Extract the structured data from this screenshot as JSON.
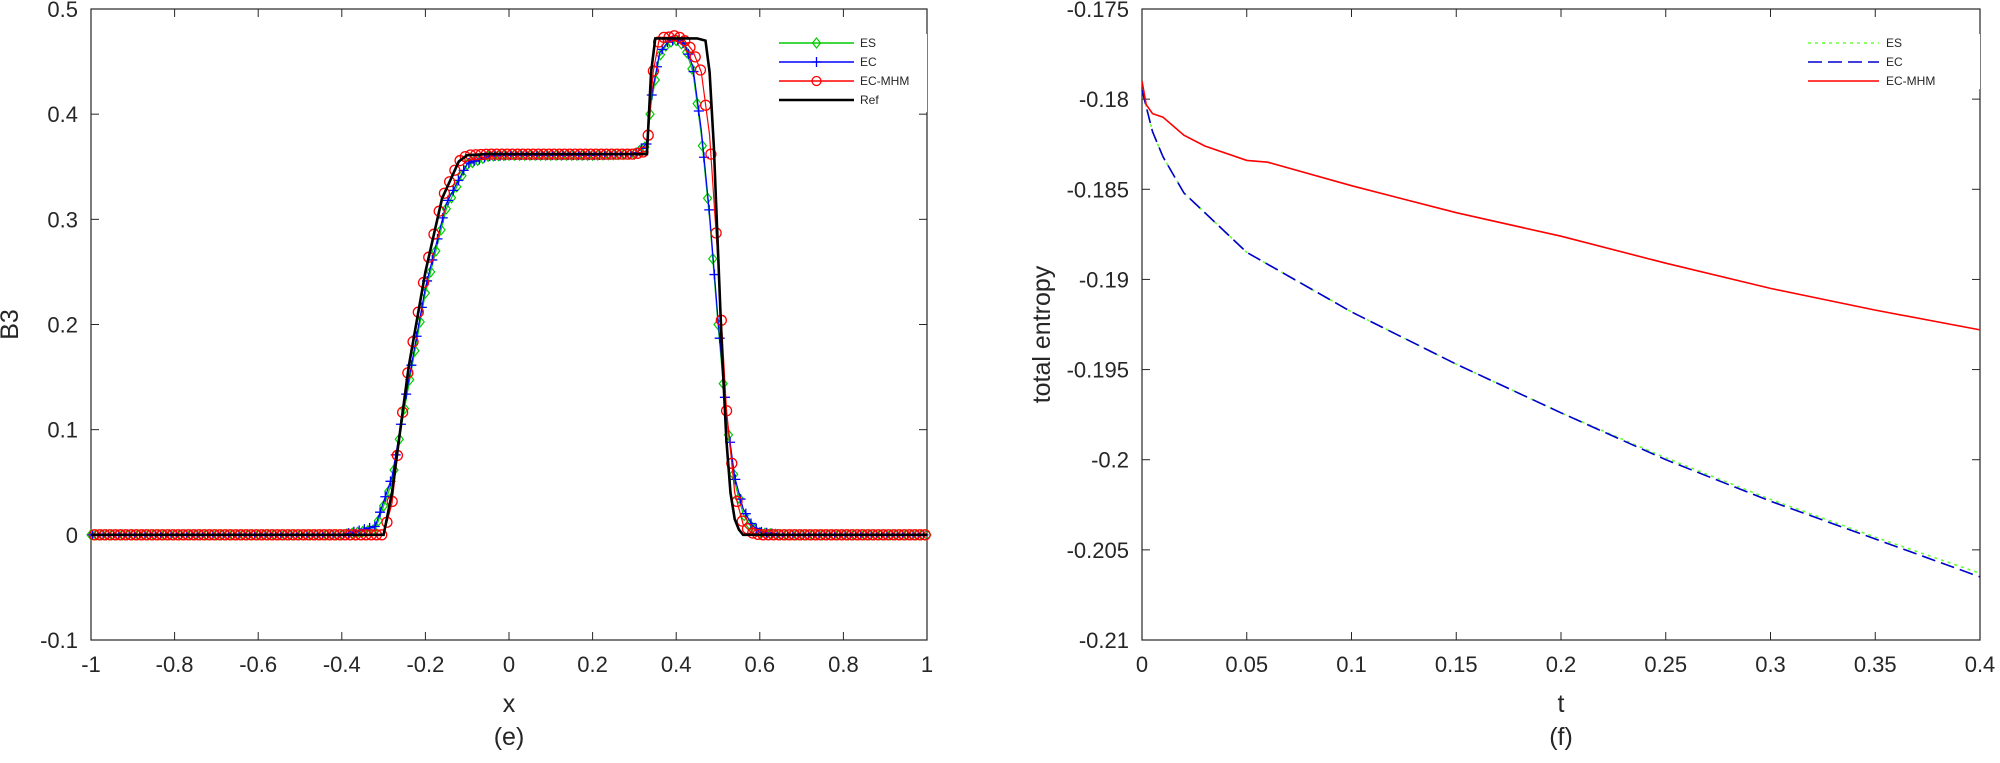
{
  "chart_data": [
    {
      "type": "line",
      "panel": "left",
      "caption": "(e)",
      "xlabel": "x",
      "ylabel": "B3",
      "xlim": [
        -1,
        1
      ],
      "ylim": [
        -0.1,
        0.5
      ],
      "xticks": [
        -1,
        -0.8,
        -0.6,
        -0.4,
        -0.2,
        0,
        0.2,
        0.4,
        0.6,
        0.8,
        1
      ],
      "xtick_labels": [
        "-1",
        "-0.8",
        "-0.6",
        "-0.4",
        "-0.2",
        "0",
        "0.2",
        "0.4",
        "0.6",
        "0.8",
        "1"
      ],
      "yticks": [
        -0.1,
        0,
        0.1,
        0.2,
        0.3,
        0.4,
        0.5
      ],
      "ytick_labels": [
        "-0.1",
        "0",
        "0.1",
        "0.2",
        "0.3",
        "0.4",
        "0.5"
      ],
      "legend_position": "top-right",
      "series": [
        {
          "name": "ES",
          "color": "#00cc00",
          "marker": "diamond",
          "x": [
            -1,
            -0.4,
            -0.32,
            -0.28,
            -0.25,
            -0.2,
            -0.15,
            -0.1,
            -0.05,
            0,
            0.1,
            0.2,
            0.3,
            0.33,
            0.34,
            0.36,
            0.38,
            0.4,
            0.42,
            0.44,
            0.46,
            0.48,
            0.5,
            0.52,
            0.54,
            0.56,
            0.58,
            0.6,
            0.65,
            0.7,
            1
          ],
          "y": [
            0,
            0,
            0.005,
            0.05,
            0.12,
            0.23,
            0.31,
            0.352,
            0.36,
            0.361,
            0.361,
            0.361,
            0.362,
            0.37,
            0.41,
            0.455,
            0.468,
            0.47,
            0.465,
            0.44,
            0.38,
            0.3,
            0.2,
            0.11,
            0.05,
            0.02,
            0.007,
            0.002,
            0,
            0,
            0
          ]
        },
        {
          "name": "EC",
          "color": "#0000ff",
          "marker": "plus",
          "x": [
            -1,
            -0.4,
            -0.32,
            -0.28,
            -0.25,
            -0.2,
            -0.15,
            -0.1,
            -0.05,
            0,
            0.1,
            0.2,
            0.3,
            0.33,
            0.34,
            0.36,
            0.38,
            0.4,
            0.42,
            0.44,
            0.46,
            0.48,
            0.5,
            0.52,
            0.54,
            0.56,
            0.58,
            0.6,
            0.65,
            0.7,
            1
          ],
          "y": [
            0,
            0,
            0.008,
            0.055,
            0.125,
            0.235,
            0.315,
            0.353,
            0.36,
            0.361,
            0.361,
            0.361,
            0.362,
            0.372,
            0.415,
            0.458,
            0.469,
            0.471,
            0.467,
            0.445,
            0.385,
            0.305,
            0.205,
            0.115,
            0.055,
            0.025,
            0.01,
            0.003,
            0,
            0,
            0
          ]
        },
        {
          "name": "EC-MHM",
          "color": "#ff0000",
          "marker": "circle",
          "x": [
            -1,
            -0.3,
            -0.28,
            -0.26,
            -0.24,
            -0.2,
            -0.16,
            -0.12,
            -0.1,
            -0.05,
            0,
            0.1,
            0.2,
            0.3,
            0.33,
            0.345,
            0.36,
            0.38,
            0.4,
            0.42,
            0.44,
            0.46,
            0.48,
            0.5,
            0.52,
            0.54,
            0.56,
            0.58,
            0.6,
            1
          ],
          "y": [
            0,
            0,
            0.03,
            0.1,
            0.16,
            0.25,
            0.32,
            0.355,
            0.361,
            0.362,
            0.362,
            0.362,
            0.362,
            0.362,
            0.365,
            0.44,
            0.473,
            0.473,
            0.475,
            0.47,
            0.46,
            0.44,
            0.38,
            0.26,
            0.12,
            0.04,
            0.01,
            0.002,
            0,
            0
          ]
        },
        {
          "name": "Ref",
          "color": "#000000",
          "marker": "none",
          "x": [
            -1,
            -0.3,
            -0.28,
            -0.26,
            -0.24,
            -0.2,
            -0.16,
            -0.12,
            -0.1,
            -0.05,
            0,
            0.1,
            0.2,
            0.3,
            0.33,
            0.34,
            0.35,
            0.4,
            0.45,
            0.47,
            0.48,
            0.49,
            0.5,
            0.51,
            0.52,
            0.53,
            0.54,
            0.55,
            0.56,
            1
          ],
          "y": [
            0,
            0,
            0.04,
            0.1,
            0.16,
            0.25,
            0.32,
            0.355,
            0.361,
            0.362,
            0.362,
            0.362,
            0.362,
            0.362,
            0.362,
            0.44,
            0.472,
            0.472,
            0.472,
            0.47,
            0.44,
            0.37,
            0.27,
            0.17,
            0.09,
            0.04,
            0.015,
            0.005,
            0,
            0
          ]
        }
      ]
    },
    {
      "type": "line",
      "panel": "right",
      "caption": "(f)",
      "xlabel": "t",
      "ylabel": "total entropy",
      "xlim": [
        0,
        0.4
      ],
      "ylim": [
        -0.21,
        -0.175
      ],
      "xticks": [
        0,
        0.05,
        0.1,
        0.15,
        0.2,
        0.25,
        0.3,
        0.35,
        0.4
      ],
      "xtick_labels": [
        "0",
        "0.05",
        "0.1",
        "0.15",
        "0.2",
        "0.25",
        "0.3",
        "0.35",
        "0.4"
      ],
      "yticks": [
        -0.21,
        -0.205,
        -0.2,
        -0.195,
        -0.19,
        -0.185,
        -0.18,
        -0.175
      ],
      "ytick_labels": [
        "-0.21",
        "-0.205",
        "-0.2",
        "-0.195",
        "-0.19",
        "-0.185",
        "-0.18",
        "-0.175"
      ],
      "legend_position": "top-right",
      "series": [
        {
          "name": "ES",
          "color": "#66ff33",
          "style": "dotted",
          "x": [
            0,
            0.005,
            0.01,
            0.02,
            0.05,
            0.1,
            0.15,
            0.2,
            0.25,
            0.3,
            0.35,
            0.4
          ],
          "y": [
            -0.1795,
            -0.1818,
            -0.1832,
            -0.1852,
            -0.1885,
            -0.1918,
            -0.1947,
            -0.1974,
            -0.1999,
            -0.2022,
            -0.2043,
            -0.2063
          ]
        },
        {
          "name": "EC",
          "color": "#0000cc",
          "style": "dashed",
          "x": [
            0,
            0.005,
            0.01,
            0.02,
            0.05,
            0.1,
            0.15,
            0.2,
            0.25,
            0.3,
            0.35,
            0.4
          ],
          "y": [
            -0.1795,
            -0.1818,
            -0.1832,
            -0.1852,
            -0.1885,
            -0.1918,
            -0.1947,
            -0.1974,
            -0.2,
            -0.2023,
            -0.2044,
            -0.2065
          ]
        },
        {
          "name": "EC-MHM",
          "color": "#ff0000",
          "style": "solid",
          "x": [
            0,
            0.002,
            0.005,
            0.01,
            0.02,
            0.03,
            0.05,
            0.06,
            0.1,
            0.15,
            0.2,
            0.25,
            0.3,
            0.35,
            0.4
          ],
          "y": [
            -0.179,
            -0.1803,
            -0.1808,
            -0.181,
            -0.182,
            -0.1826,
            -0.1834,
            -0.1835,
            -0.1848,
            -0.1863,
            -0.1876,
            -0.1891,
            -0.1905,
            -0.1917,
            -0.1928
          ]
        }
      ]
    }
  ]
}
